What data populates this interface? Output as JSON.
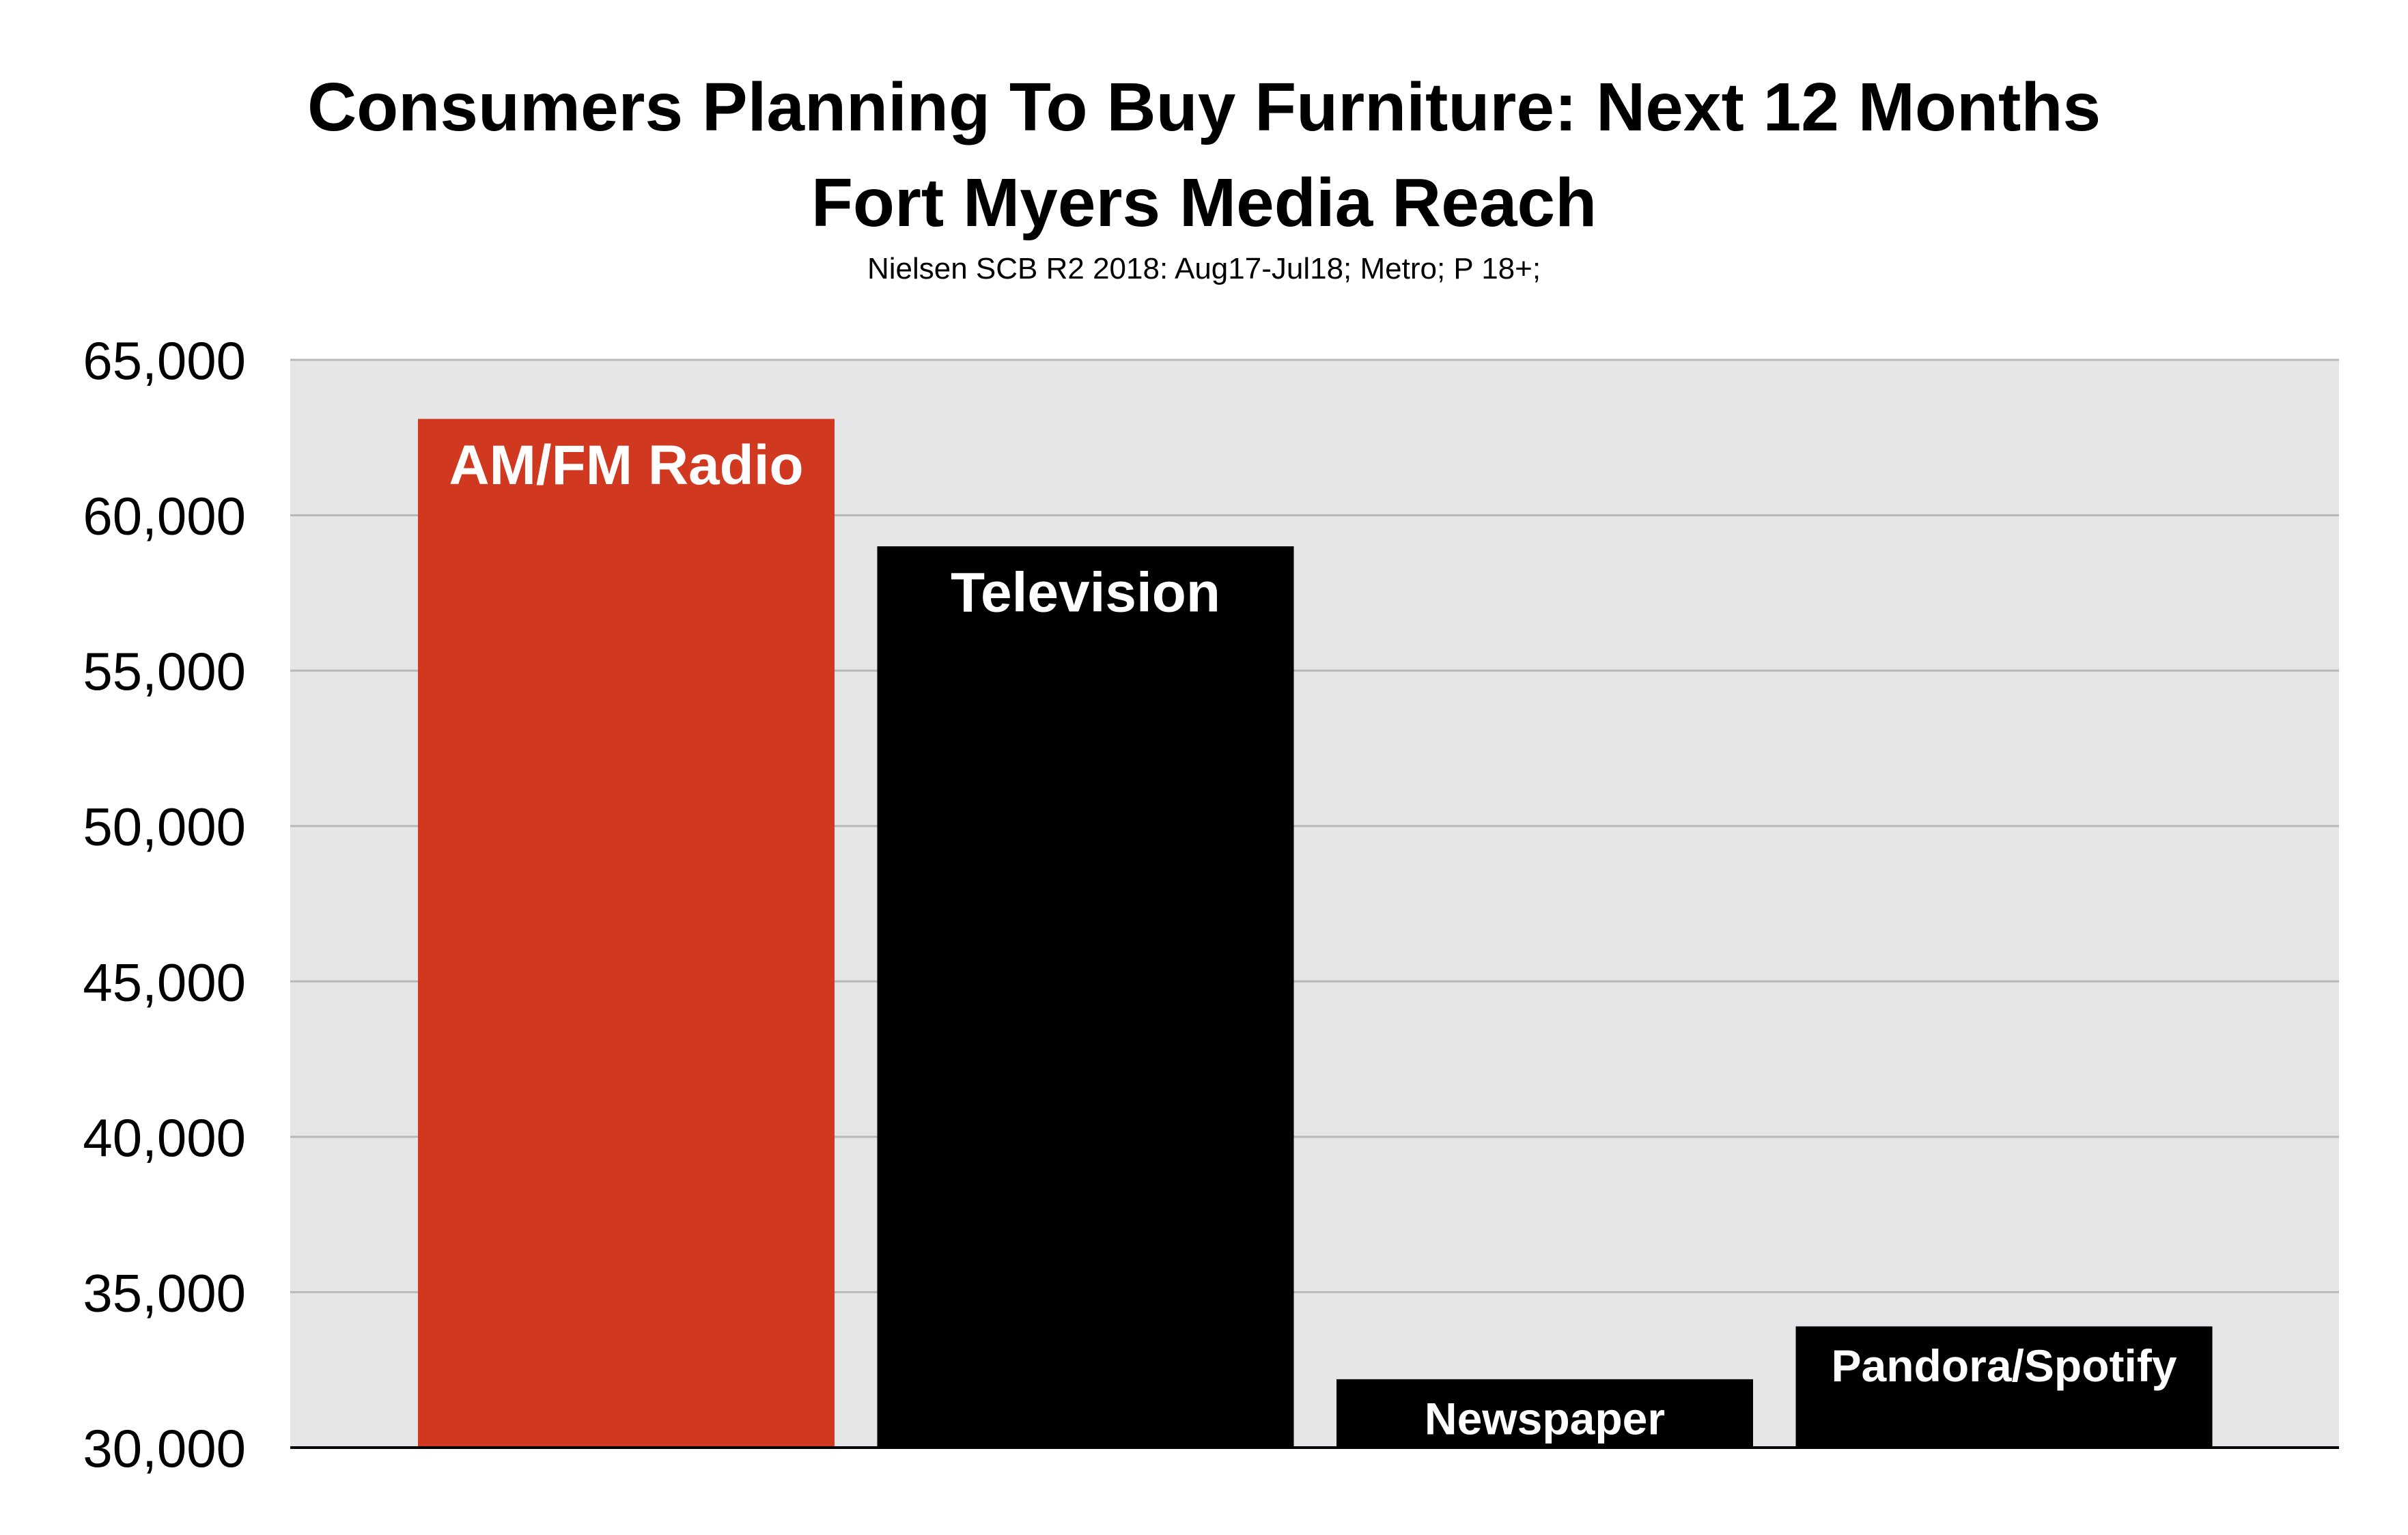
{
  "chart_data": {
    "type": "bar",
    "title": "Consumers Planning To Buy Furniture: Next 12 Months",
    "title_line2": "Fort Myers Media Reach",
    "subtitle": "Nielsen SCB R2 2018: Aug17-Jul18; Metro; P 18+;",
    "categories": [
      "AM/FM Radio",
      "Television",
      "Newspaper",
      "Pandora/Spotify"
    ],
    "values": [
      63100,
      59000,
      32200,
      33900
    ],
    "bar_colors": [
      "#d03820",
      "#000000",
      "#000000",
      "#000000"
    ],
    "label_color": "#ffffff",
    "plot_background": "#e6e6e9",
    "gridline_color": "#b8b8b8",
    "ylim": [
      30000,
      65000
    ],
    "yticks": [
      30000,
      35000,
      40000,
      45000,
      50000,
      55000,
      60000,
      65000
    ],
    "ytick_labels": [
      "30,000",
      "35,000",
      "40,000",
      "45,000",
      "50,000",
      "55,000",
      "60,000",
      "65,000"
    ],
    "xlabel": "",
    "ylabel": "",
    "grid": true,
    "legend": "none"
  }
}
